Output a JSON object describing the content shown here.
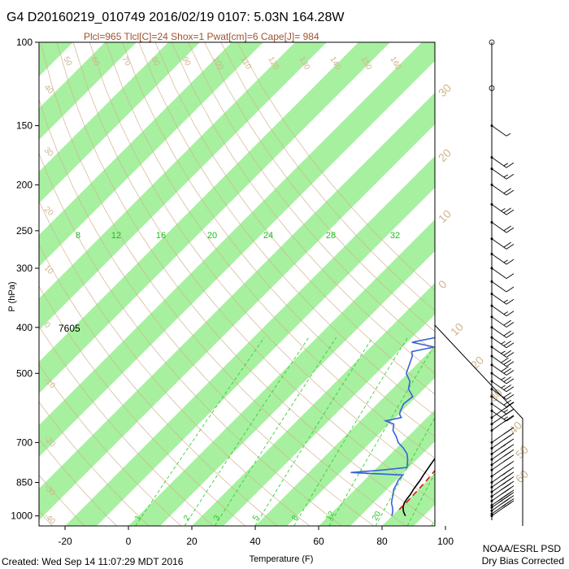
{
  "header": {
    "title": "G4 D20160219_010749 2016/02/19 0107:  5.03N 164.28W",
    "subtitle": "Plcl=965 Tlcl[C]=24 Shox=1 Pwat[cm]=6 Cape[J]= 984"
  },
  "footer": {
    "created": "Created: Wed Sep 14 11:07:29 MDT 2016",
    "org": "NOAA/ESRL PSD",
    "note": "Dry Bias Corrected"
  },
  "annotation": {
    "height_label": "7605",
    "height_pressure": 400
  },
  "colors": {
    "band": "#a6f0a0",
    "temperature": "#000000",
    "dewpoint": "#3a62d8",
    "parcel": "#dd1111",
    "isotherm_label": "#19c019",
    "theta_line": "#d2b48c",
    "mixing_ratio": "#22cc22",
    "wind": "#000000"
  },
  "chart_data": {
    "type": "skew-t",
    "xlabel": "Temperature (F)",
    "ylabel": "P (hPa)",
    "x_ticks": [
      -20,
      0,
      20,
      40,
      60,
      80,
      100
    ],
    "y_ticks": [
      100,
      150,
      200,
      250,
      300,
      400,
      500,
      700,
      850,
      1000
    ],
    "xlim": [
      -32,
      120
    ],
    "ylim": [
      1050,
      100
    ],
    "isotherm_labels": [
      "8",
      "12",
      "16",
      "20",
      "24",
      "28",
      "32"
    ],
    "isotherm_label_pressure": 230,
    "temperature_scale_labels": [
      "30",
      "20",
      "10",
      "0",
      "10",
      "20",
      "30",
      "40",
      "50",
      "60"
    ],
    "theta_labels": [
      "50",
      "60",
      "70",
      "80",
      "90",
      "100",
      "110",
      "120",
      "130",
      "140",
      "150",
      "160"
    ],
    "theta_side_labels": [
      "40",
      "30",
      "20",
      "10",
      "0",
      "-10",
      "-20",
      "-30",
      "-40"
    ],
    "mixing_ratio_labels": [
      "1",
      "2",
      "3",
      "5",
      "8",
      "12",
      "20"
    ],
    "series": [
      {
        "name": "temperature",
        "points": [
          [
            1000,
            84.2
          ],
          [
            980,
            82.3
          ],
          [
            960,
            80.8
          ],
          [
            940,
            79.8
          ],
          [
            920,
            79.3
          ],
          [
            900,
            79
          ],
          [
            880,
            78.4
          ],
          [
            860,
            78
          ],
          [
            840,
            77.6
          ],
          [
            820,
            77
          ],
          [
            800,
            76.5
          ],
          [
            780,
            76
          ],
          [
            760,
            75.5
          ],
          [
            740,
            75
          ],
          [
            720,
            74.5
          ],
          [
            700,
            74.1
          ],
          [
            680,
            73.4
          ],
          [
            660,
            73.1
          ],
          [
            640,
            72.5
          ],
          [
            620,
            72.2
          ],
          [
            600,
            71.5
          ],
          [
            580,
            70.7
          ],
          [
            560,
            70
          ],
          [
            540,
            69.3
          ],
          [
            520,
            68.7
          ],
          [
            500,
            67.7
          ],
          [
            480,
            67
          ],
          [
            460,
            65.5
          ],
          [
            440,
            64.2
          ],
          [
            420,
            63.2
          ],
          [
            400,
            62.2
          ],
          [
            380,
            61.1
          ],
          [
            360,
            59.9
          ],
          [
            350,
            59.4
          ],
          [
            340,
            57.7
          ],
          [
            320,
            54.8
          ],
          [
            300,
            51.8
          ],
          [
            280,
            48.2
          ],
          [
            260,
            44.2
          ],
          [
            240,
            39.5
          ],
          [
            220,
            34
          ],
          [
            200,
            27.9
          ],
          [
            180,
            20.8
          ],
          [
            175,
            18.8
          ]
        ]
      },
      {
        "name": "dewpoint",
        "points": [
          [
            1000,
            79.9
          ],
          [
            980,
            78.9
          ],
          [
            960,
            77.5
          ],
          [
            940,
            75.8
          ],
          [
            920,
            74.6
          ],
          [
            900,
            73.5
          ],
          [
            880,
            72.2
          ],
          [
            860,
            71.5
          ],
          [
            840,
            70.7
          ],
          [
            820,
            70.5
          ],
          [
            810,
            53.3
          ],
          [
            800,
            62.7
          ],
          [
            790,
            69.4
          ],
          [
            780,
            68.7
          ],
          [
            760,
            67.1
          ],
          [
            740,
            65.2
          ],
          [
            720,
            62.3
          ],
          [
            700,
            58.8
          ],
          [
            680,
            56.3
          ],
          [
            660,
            53.3
          ],
          [
            640,
            51.6
          ],
          [
            630,
            48
          ],
          [
            620,
            51.9
          ],
          [
            610,
            50.3
          ],
          [
            600,
            49.5
          ],
          [
            580,
            48.3
          ],
          [
            560,
            48.9
          ],
          [
            540,
            45.2
          ],
          [
            520,
            43.2
          ],
          [
            500,
            39.5
          ],
          [
            480,
            37.8
          ],
          [
            460,
            36
          ],
          [
            450,
            34.4
          ],
          [
            440,
            40
          ],
          [
            430,
            31.5
          ],
          [
            420,
            37.6
          ],
          [
            410,
            39.1
          ],
          [
            400,
            38.4
          ],
          [
            380,
            38.1
          ],
          [
            360,
            37.2
          ],
          [
            350,
            35.3
          ],
          [
            340,
            31.8
          ],
          [
            320,
            29.6
          ],
          [
            300,
            25.6
          ],
          [
            280,
            22.2
          ],
          [
            260,
            17.4
          ],
          [
            240,
            13.2
          ],
          [
            220,
            8.8
          ],
          [
            200,
            2.5
          ],
          [
            195,
            0.8
          ]
        ]
      },
      {
        "name": "parcel",
        "points": [
          [
            970,
            80.3
          ],
          [
            960,
            80.2
          ],
          [
            940,
            80.3
          ],
          [
            920,
            80.2
          ],
          [
            900,
            80.1
          ],
          [
            850,
            79.8
          ],
          [
            800,
            79.2
          ],
          [
            750,
            78.5
          ],
          [
            700,
            77.8
          ],
          [
            650,
            77.1
          ],
          [
            600,
            76.4
          ],
          [
            550,
            75.4
          ],
          [
            500,
            73.9
          ],
          [
            450,
            72.1
          ],
          [
            400,
            70.2
          ],
          [
            350,
            67.6
          ],
          [
            300,
            63.8
          ],
          [
            250,
            58.2
          ],
          [
            200,
            49.7
          ],
          [
            180,
            44.6
          ]
        ]
      }
    ],
    "wind_barb_pressures": [
      1000,
      990,
      975,
      960,
      950,
      930,
      910,
      890,
      870,
      850,
      825,
      800,
      780,
      760,
      740,
      720,
      700,
      660,
      640,
      620,
      600,
      580,
      560,
      540,
      520,
      500,
      480,
      460,
      440,
      420,
      400,
      380,
      360,
      340,
      320,
      300,
      280,
      260,
      240,
      220,
      200,
      185,
      175,
      150,
      125,
      100
    ],
    "wind_barb_speeds": [
      20,
      25,
      30,
      35,
      35,
      30,
      30,
      25,
      25,
      25,
      20,
      20,
      20,
      25,
      25,
      20,
      20,
      15,
      15,
      15,
      15,
      15,
      20,
      20,
      25,
      25,
      30,
      30,
      25,
      25,
      20,
      20,
      15,
      15,
      10,
      10,
      15,
      20,
      20,
      25,
      20,
      15,
      15,
      5,
      0,
      0
    ]
  }
}
